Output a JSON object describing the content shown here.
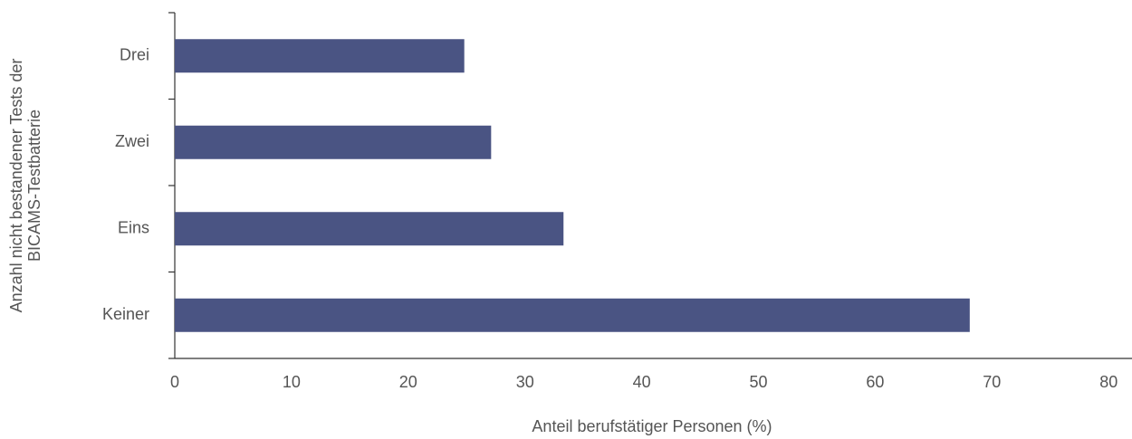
{
  "chart_data": {
    "type": "bar",
    "orientation": "horizontal",
    "xlabel": "Anteil berufstätiger Personen (%)",
    "ylabel": [
      "Anzahl nicht bestandener Tests der",
      "BICAMS-Testbatterie"
    ],
    "categories": [
      "Keiner",
      "Eins",
      "Zwei",
      "Drei"
    ],
    "values": [
      68.1,
      33.3,
      27.1,
      24.8
    ],
    "color": "#4a5483",
    "xlim": [
      0,
      82
    ],
    "xticks": [
      0,
      10,
      20,
      30,
      40,
      50,
      60,
      70,
      80
    ],
    "grid": false
  }
}
